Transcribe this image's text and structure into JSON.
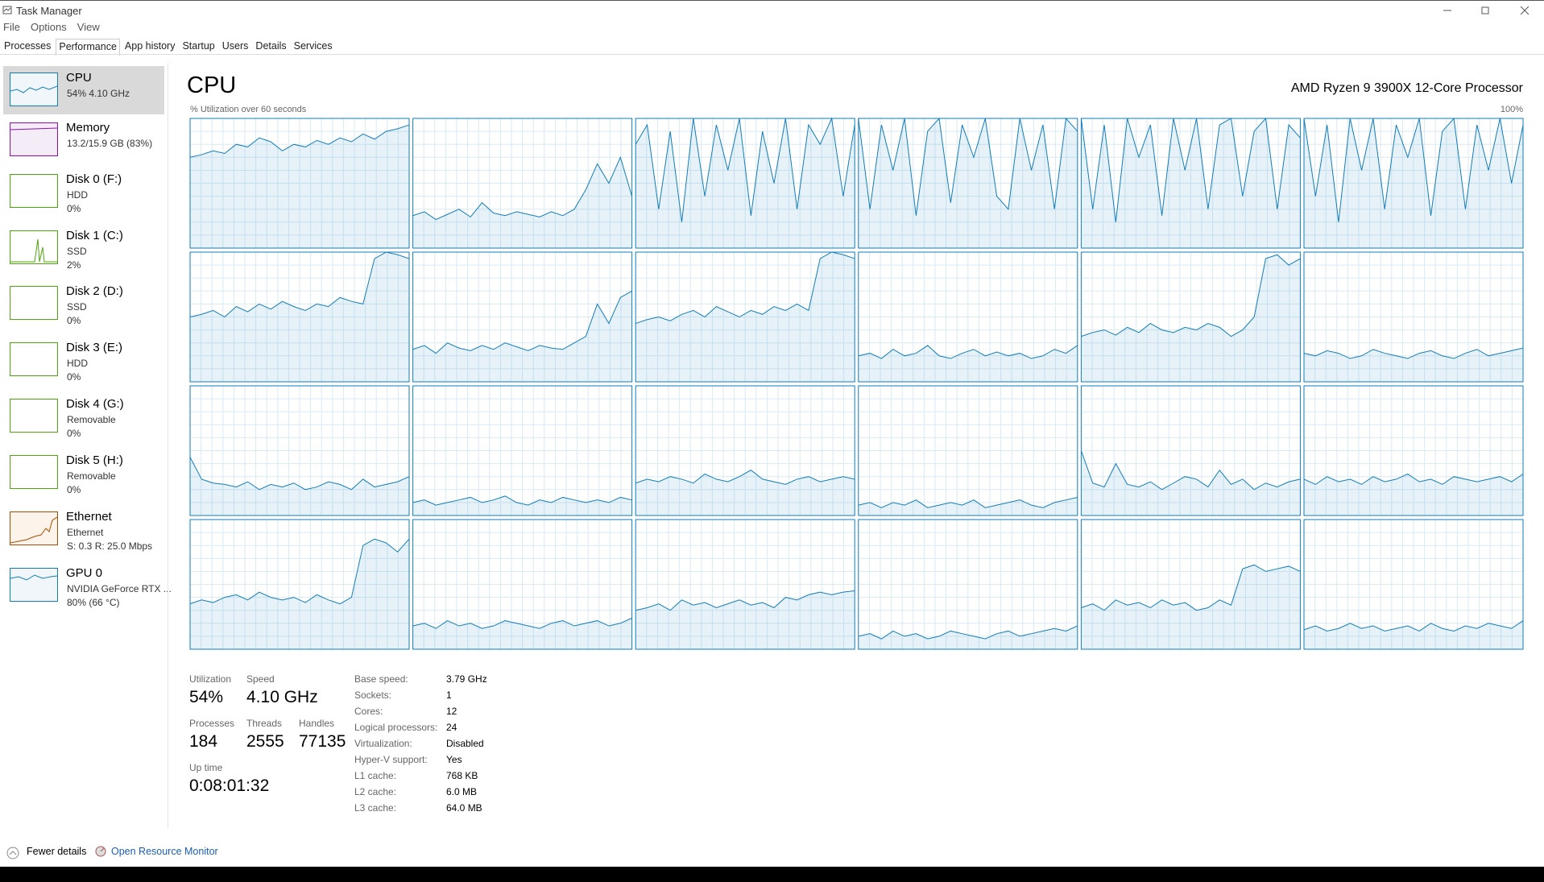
{
  "window": {
    "title": "Task Manager",
    "menu": [
      "File",
      "Options",
      "View"
    ],
    "tabs": [
      "Processes",
      "Performance",
      "App history",
      "Startup",
      "Users",
      "Details",
      "Services"
    ]
  },
  "sidebar": [
    {
      "name": "CPU",
      "lines": [
        "54%  4.10 GHz"
      ]
    },
    {
      "name": "Memory",
      "lines": [
        "13.2/15.9 GB (83%)"
      ]
    },
    {
      "name": "Disk 0 (F:)",
      "lines": [
        "HDD",
        "0%"
      ]
    },
    {
      "name": "Disk 1 (C:)",
      "lines": [
        "SSD",
        "2%"
      ]
    },
    {
      "name": "Disk 2 (D:)",
      "lines": [
        "SSD",
        "0%"
      ]
    },
    {
      "name": "Disk 3 (E:)",
      "lines": [
        "HDD",
        "0%"
      ]
    },
    {
      "name": "Disk 4 (G:)",
      "lines": [
        "Removable",
        "0%"
      ]
    },
    {
      "name": "Disk 5 (H:)",
      "lines": [
        "Removable",
        "0%"
      ]
    },
    {
      "name": "Ethernet",
      "lines": [
        "Ethernet",
        "S: 0.3  R: 25.0 Mbps"
      ]
    },
    {
      "name": "GPU 0",
      "lines": [
        "NVIDIA GeForce RTX ...",
        "80%  (66 °C)"
      ]
    }
  ],
  "cpu": {
    "title": "CPU",
    "processor": "AMD Ryzen 9 3900X 12-Core Processor",
    "graph_label": "% Utilization over 60 seconds",
    "graph_max": "100%",
    "graphs": [
      [
        70,
        72,
        75,
        73,
        80,
        78,
        85,
        82,
        75,
        80,
        78,
        83,
        80,
        85,
        82,
        88,
        84,
        90,
        92,
        95
      ],
      [
        25,
        28,
        22,
        26,
        30,
        24,
        35,
        27,
        25,
        28,
        26,
        24,
        28,
        25,
        30,
        45,
        65,
        50,
        70,
        40
      ],
      [
        80,
        95,
        30,
        90,
        20,
        100,
        40,
        95,
        60,
        100,
        25,
        90,
        50,
        100,
        30,
        95,
        80,
        100,
        40,
        95
      ],
      [
        100,
        30,
        95,
        60,
        100,
        25,
        90,
        100,
        35,
        95,
        70,
        100,
        40,
        30,
        100,
        60,
        95,
        30,
        100,
        90
      ],
      [
        100,
        30,
        95,
        20,
        100,
        70,
        95,
        25,
        100,
        60,
        100,
        30,
        95,
        100,
        40,
        90,
        100,
        30,
        95,
        85
      ],
      [
        100,
        40,
        95,
        20,
        100,
        60,
        100,
        30,
        95,
        70,
        100,
        25,
        90,
        100,
        30,
        95,
        60,
        100,
        50,
        95
      ],
      [
        50,
        52,
        55,
        50,
        58,
        54,
        60,
        56,
        62,
        58,
        55,
        60,
        58,
        65,
        62,
        60,
        95,
        100,
        98,
        95
      ],
      [
        25,
        28,
        22,
        30,
        26,
        24,
        28,
        25,
        30,
        27,
        24,
        28,
        26,
        25,
        30,
        35,
        60,
        45,
        65,
        70
      ],
      [
        45,
        48,
        50,
        47,
        52,
        55,
        50,
        58,
        54,
        50,
        55,
        52,
        58,
        55,
        60,
        55,
        95,
        100,
        98,
        95
      ],
      [
        20,
        22,
        18,
        25,
        20,
        22,
        28,
        20,
        18,
        22,
        25,
        20,
        23,
        20,
        22,
        18,
        20,
        25,
        22,
        28
      ],
      [
        35,
        38,
        40,
        36,
        42,
        38,
        45,
        40,
        38,
        42,
        40,
        45,
        42,
        35,
        40,
        50,
        95,
        98,
        90,
        95
      ],
      [
        22,
        20,
        24,
        22,
        18,
        20,
        25,
        22,
        20,
        18,
        22,
        24,
        20,
        18,
        22,
        25,
        20,
        22,
        24,
        26
      ],
      [
        45,
        28,
        25,
        24,
        22,
        26,
        20,
        24,
        22,
        25,
        20,
        22,
        26,
        24,
        20,
        28,
        22,
        24,
        26,
        30
      ],
      [
        10,
        12,
        8,
        10,
        12,
        14,
        10,
        12,
        15,
        10,
        8,
        12,
        10,
        14,
        12,
        10,
        12,
        10,
        14,
        12
      ],
      [
        25,
        28,
        26,
        30,
        28,
        25,
        32,
        28,
        26,
        30,
        35,
        28,
        26,
        24,
        28,
        30,
        26,
        28,
        30,
        28
      ],
      [
        8,
        10,
        6,
        10,
        8,
        12,
        6,
        8,
        10,
        8,
        12,
        6,
        8,
        10,
        12,
        8,
        6,
        10,
        12,
        14
      ],
      [
        50,
        25,
        22,
        40,
        24,
        22,
        26,
        20,
        25,
        30,
        28,
        22,
        35,
        24,
        28,
        20,
        25,
        22,
        26,
        28
      ],
      [
        28,
        24,
        30,
        26,
        28,
        24,
        30,
        26,
        28,
        32,
        26,
        28,
        24,
        30,
        28,
        26,
        28,
        30,
        26,
        32
      ],
      [
        35,
        38,
        36,
        40,
        42,
        38,
        44,
        40,
        38,
        40,
        36,
        42,
        38,
        35,
        40,
        80,
        85,
        82,
        75,
        85
      ],
      [
        18,
        20,
        16,
        22,
        18,
        20,
        16,
        18,
        22,
        20,
        18,
        16,
        20,
        22,
        18,
        20,
        22,
        18,
        20,
        24
      ],
      [
        30,
        32,
        35,
        30,
        38,
        34,
        36,
        32,
        35,
        38,
        34,
        36,
        32,
        40,
        38,
        42,
        44,
        42,
        44,
        45
      ],
      [
        10,
        12,
        8,
        14,
        10,
        12,
        8,
        10,
        14,
        12,
        10,
        8,
        12,
        14,
        10,
        12,
        14,
        16,
        14,
        18
      ],
      [
        32,
        35,
        30,
        38,
        34,
        36,
        32,
        38,
        34,
        36,
        30,
        32,
        38,
        34,
        62,
        65,
        60,
        62,
        64,
        60
      ],
      [
        15,
        18,
        14,
        16,
        20,
        16,
        18,
        14,
        16,
        18,
        14,
        20,
        16,
        14,
        18,
        16,
        20,
        18,
        16,
        22
      ]
    ]
  },
  "stats": [
    {
      "label": "Utilization",
      "value": "54%"
    },
    {
      "label": "Speed",
      "value": "4.10 GHz"
    },
    {
      "label": "Processes",
      "value": "184"
    },
    {
      "label": "Threads",
      "value": "2555"
    },
    {
      "label": "Handles",
      "value": "77135"
    },
    {
      "label": "Up time",
      "value": "0:08:01:32"
    }
  ],
  "specs": [
    {
      "label": "Base speed:",
      "value": "3.79 GHz"
    },
    {
      "label": "Sockets:",
      "value": "1"
    },
    {
      "label": "Cores:",
      "value": "12"
    },
    {
      "label": "Logical processors:",
      "value": "24"
    },
    {
      "label": "Virtualization:",
      "value": "Disabled"
    },
    {
      "label": "Hyper-V support:",
      "value": "Yes"
    },
    {
      "label": "L1 cache:",
      "value": "768 KB"
    },
    {
      "label": "L2 cache:",
      "value": "6.0 MB"
    },
    {
      "label": "L3 cache:",
      "value": "64.0 MB"
    }
  ],
  "footer": {
    "fewer_details": "Fewer details",
    "resource_monitor": "Open Resource Monitor"
  }
}
